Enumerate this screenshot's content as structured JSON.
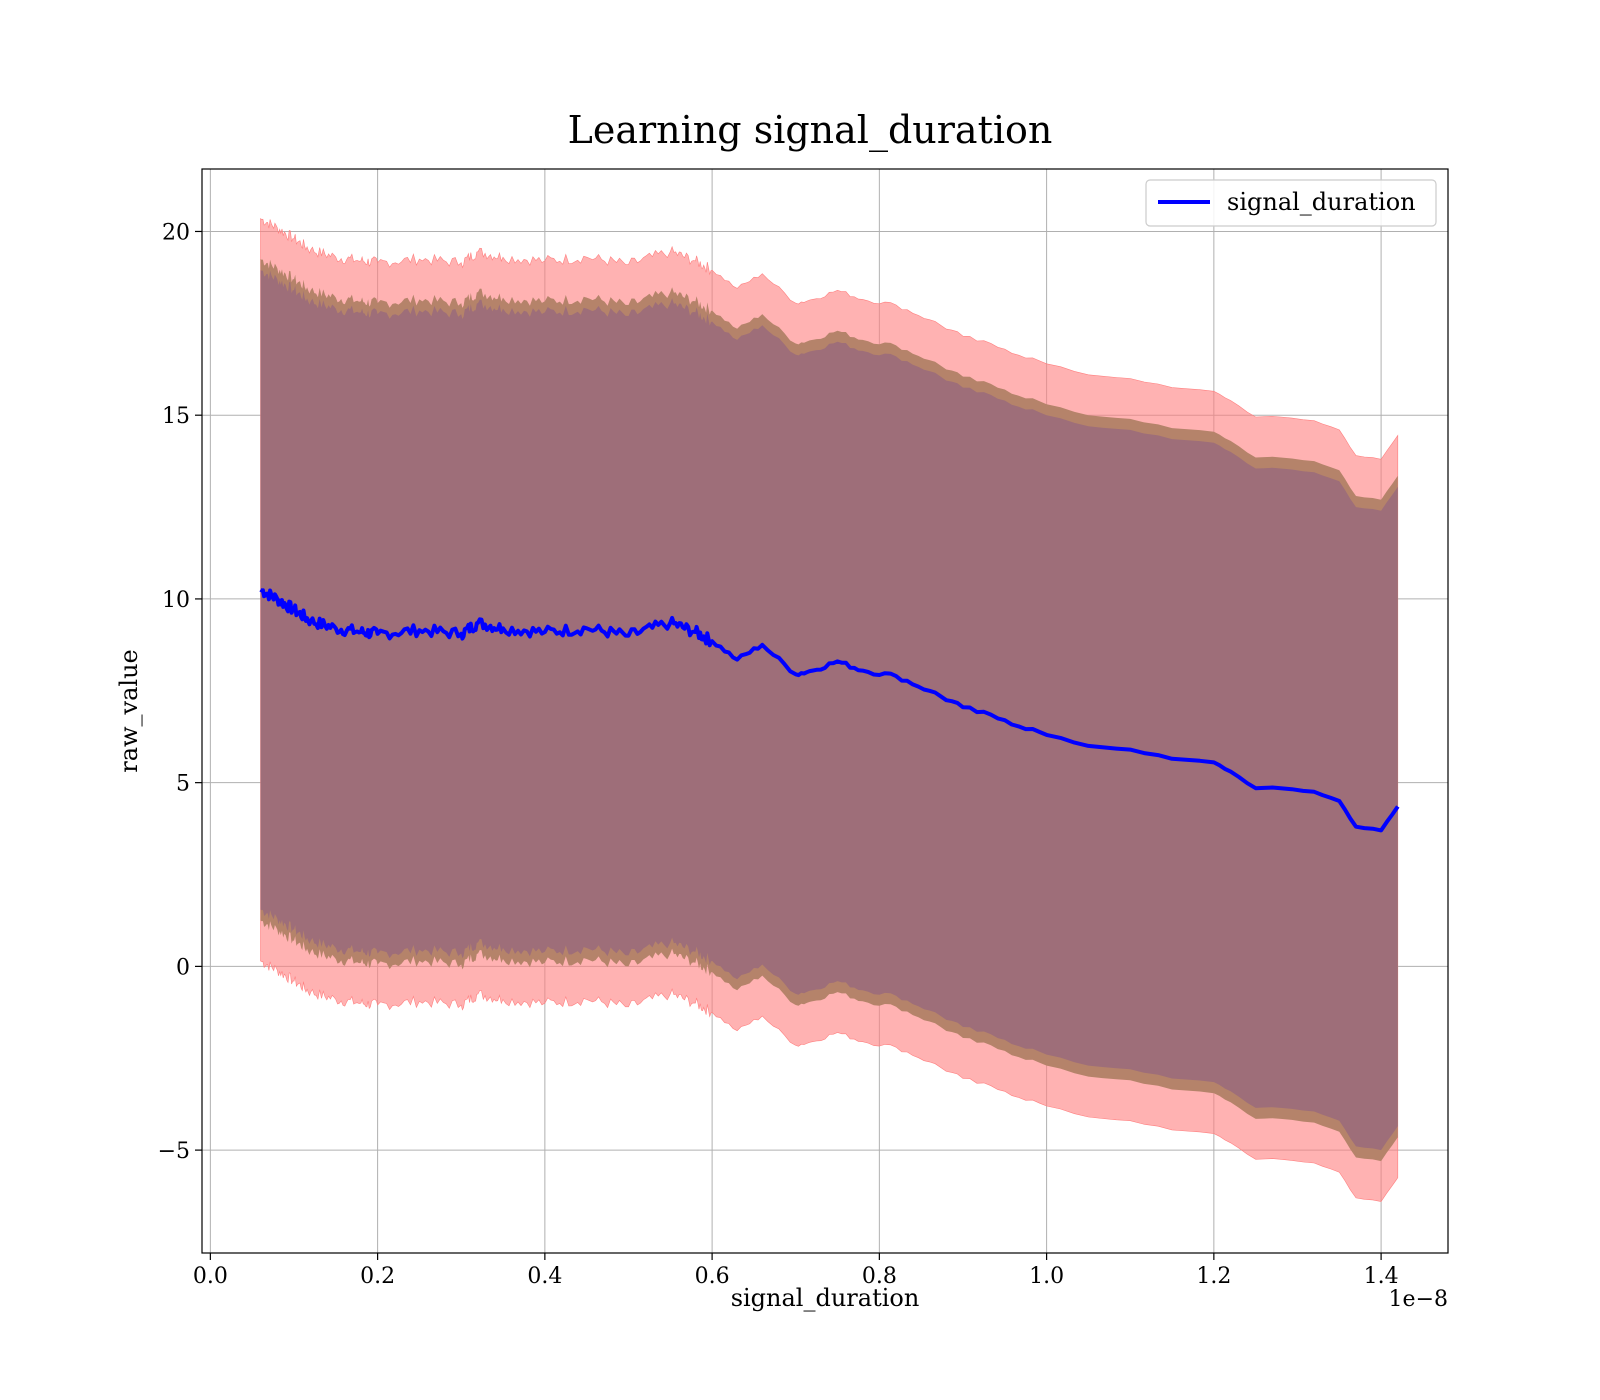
{
  "chart_data": {
    "type": "line",
    "title": "Learning signal_duration",
    "xlabel": "signal_duration",
    "ylabel": "raw_value",
    "x_offset_label": "1e−8",
    "xlim": [
      -0.01,
      1.48
    ],
    "ylim": [
      -7.8,
      21.7
    ],
    "grid": true,
    "legend_position": "top-right",
    "x_ticks": [
      0.0,
      0.2,
      0.4,
      0.6,
      0.8,
      1.0,
      1.2,
      1.4
    ],
    "x_tick_labels": [
      "0.0",
      "0.2",
      "0.4",
      "0.6",
      "0.8",
      "1.0",
      "1.2",
      "1.4"
    ],
    "y_ticks": [
      -5,
      0,
      5,
      10,
      15,
      20
    ],
    "y_tick_labels": [
      "−5",
      "0",
      "5",
      "10",
      "15",
      "20"
    ],
    "colors": {
      "line": "#0000ff",
      "outer_band": "#ff7f7f",
      "middle_band": "#b5836a",
      "inner_band": "#9e6e79",
      "grid": "#b0b0b0"
    },
    "series": [
      {
        "name": "signal_duration",
        "x": [
          0.06,
          0.08,
          0.1,
          0.12,
          0.15,
          0.18,
          0.2,
          0.25,
          0.3,
          0.32,
          0.35,
          0.4,
          0.45,
          0.5,
          0.55,
          0.58,
          0.6,
          0.63,
          0.66,
          0.7,
          0.72,
          0.75,
          0.78,
          0.82,
          0.86,
          0.9,
          0.95,
          1.0,
          1.05,
          1.1,
          1.15,
          1.2,
          1.22,
          1.25,
          1.28,
          1.32,
          1.35,
          1.37,
          1.4,
          1.42
        ],
        "y": [
          10.25,
          10.0,
          9.7,
          9.4,
          9.2,
          9.1,
          9.05,
          9.15,
          9.05,
          9.35,
          9.2,
          9.1,
          9.2,
          9.0,
          9.35,
          9.1,
          8.85,
          8.35,
          8.75,
          7.95,
          8.05,
          8.3,
          8.05,
          7.9,
          7.5,
          7.05,
          6.7,
          6.3,
          6.0,
          5.9,
          5.65,
          5.55,
          5.3,
          4.85,
          4.85,
          4.75,
          4.5,
          3.8,
          3.7,
          4.35
        ],
        "outer_half_width": 10.1,
        "middle_half_width": 9.0,
        "inner_half_width": 8.7
      }
    ]
  }
}
